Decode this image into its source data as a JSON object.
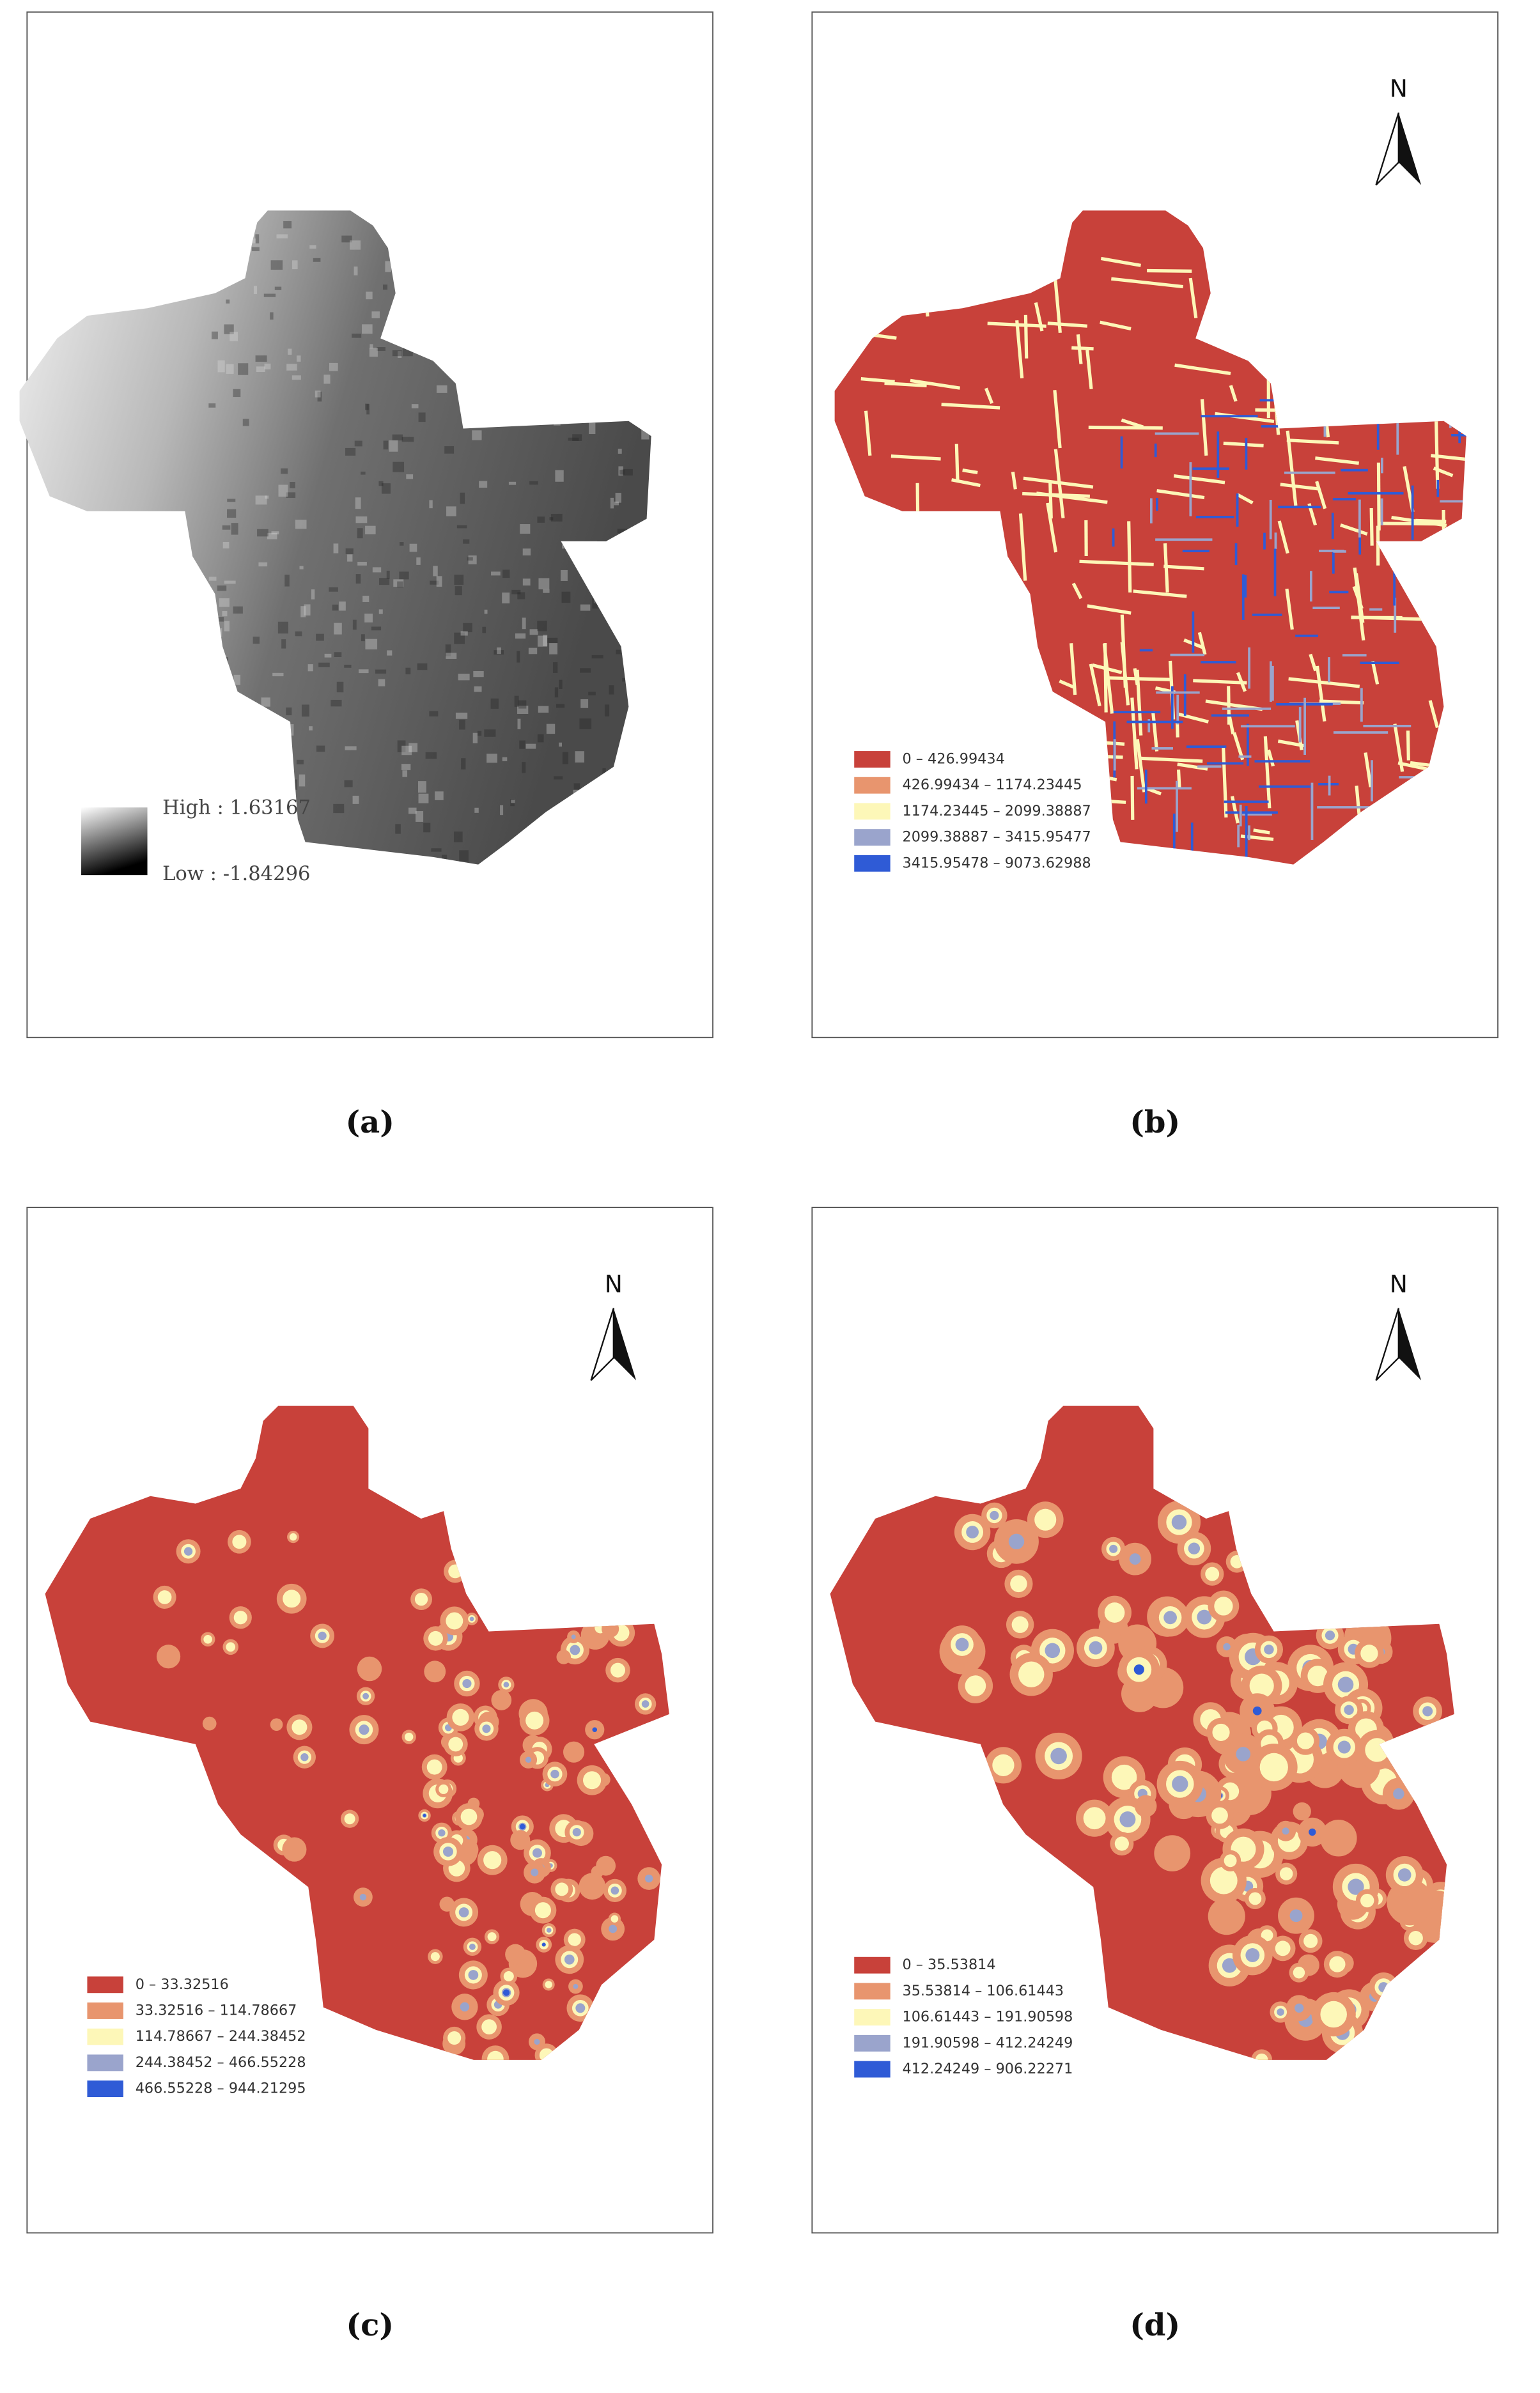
{
  "panels": [
    {
      "caption": "(a)",
      "legend": {
        "high": "High : 1.63167",
        "low": "Low : -1.84296"
      }
    },
    {
      "caption": "(b)",
      "north": "N",
      "legend": [
        "0 – 426.99434",
        "426.99434 – 1174.23445",
        "1174.23445 – 2099.38887",
        "2099.38887 – 3415.95477",
        "3415.95478 – 9073.62988"
      ]
    },
    {
      "caption": "(c)",
      "north": "N",
      "legend": [
        "0 – 33.32516",
        "33.32516 – 114.78667",
        "114.78667 – 244.38452",
        "244.38452 – 466.55228",
        "466.55228 – 944.21295"
      ]
    },
    {
      "caption": "(d)",
      "north": "N",
      "legend": [
        "0 – 35.53814",
        "35.53814 – 106.61443",
        "106.61443 – 191.90598",
        "191.90598 – 412.24249",
        "412.24249 – 906.22271"
      ]
    }
  ]
}
